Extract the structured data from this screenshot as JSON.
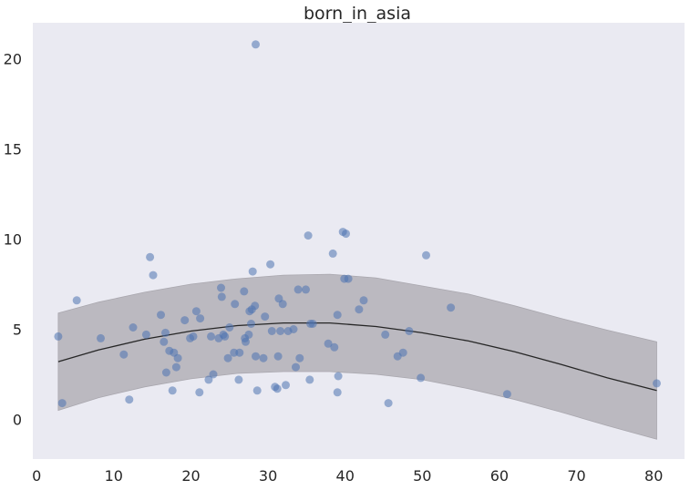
{
  "chart_data": {
    "type": "scatter",
    "title": "born_in_asia",
    "xlabel": "",
    "ylabel": "",
    "xlim": [
      -0.5,
      84
    ],
    "ylim": [
      -2.2,
      22
    ],
    "xticks": [
      0,
      10,
      20,
      30,
      40,
      50,
      60,
      70,
      80
    ],
    "yticks": [
      0,
      5,
      10,
      15,
      20
    ],
    "grid": false,
    "colors": {
      "background": "#EAEAF2",
      "points": "#4C72B0",
      "band": "#BBB9C0",
      "band_edge": "#A9A7AE",
      "fit_line": "#262626"
    },
    "points": [
      [
        2.8,
        4.6
      ],
      [
        3.3,
        0.9
      ],
      [
        5.2,
        6.6
      ],
      [
        8.3,
        4.5
      ],
      [
        11.3,
        3.6
      ],
      [
        12.0,
        1.1
      ],
      [
        12.5,
        5.1
      ],
      [
        14.2,
        4.7
      ],
      [
        14.7,
        9.0
      ],
      [
        15.1,
        8.0
      ],
      [
        16.1,
        5.8
      ],
      [
        16.5,
        4.3
      ],
      [
        16.7,
        4.8
      ],
      [
        16.8,
        2.6
      ],
      [
        17.2,
        3.8
      ],
      [
        17.6,
        1.6
      ],
      [
        17.8,
        3.7
      ],
      [
        18.1,
        2.9
      ],
      [
        18.3,
        3.4
      ],
      [
        19.2,
        5.5
      ],
      [
        19.9,
        4.5
      ],
      [
        20.3,
        4.6
      ],
      [
        20.7,
        6.0
      ],
      [
        21.1,
        1.5
      ],
      [
        21.2,
        5.6
      ],
      [
        22.3,
        2.2
      ],
      [
        22.6,
        4.6
      ],
      [
        22.9,
        2.5
      ],
      [
        23.6,
        4.5
      ],
      [
        23.9,
        7.3
      ],
      [
        24.0,
        6.8
      ],
      [
        24.2,
        4.7
      ],
      [
        24.4,
        4.6
      ],
      [
        24.8,
        3.4
      ],
      [
        25.0,
        5.1
      ],
      [
        25.6,
        3.7
      ],
      [
        25.7,
        6.4
      ],
      [
        26.2,
        2.2
      ],
      [
        26.3,
        3.7
      ],
      [
        26.9,
        7.1
      ],
      [
        27.0,
        4.5
      ],
      [
        27.1,
        4.3
      ],
      [
        27.5,
        4.7
      ],
      [
        27.6,
        6.0
      ],
      [
        27.8,
        5.3
      ],
      [
        27.9,
        6.1
      ],
      [
        28.0,
        8.2
      ],
      [
        28.3,
        6.3
      ],
      [
        28.4,
        3.5
      ],
      [
        28.6,
        1.6
      ],
      [
        28.4,
        20.8
      ],
      [
        29.4,
        3.4
      ],
      [
        29.6,
        5.7
      ],
      [
        30.3,
        8.6
      ],
      [
        30.5,
        4.9
      ],
      [
        30.9,
        1.8
      ],
      [
        31.2,
        1.7
      ],
      [
        31.3,
        3.5
      ],
      [
        31.4,
        6.7
      ],
      [
        31.6,
        4.9
      ],
      [
        31.9,
        6.4
      ],
      [
        32.3,
        1.9
      ],
      [
        32.6,
        4.9
      ],
      [
        33.3,
        5.0
      ],
      [
        33.6,
        2.9
      ],
      [
        33.9,
        7.2
      ],
      [
        34.1,
        3.4
      ],
      [
        34.9,
        7.2
      ],
      [
        35.2,
        10.2
      ],
      [
        35.4,
        2.2
      ],
      [
        35.5,
        5.3
      ],
      [
        35.8,
        5.3
      ],
      [
        37.8,
        4.2
      ],
      [
        38.4,
        9.2
      ],
      [
        38.6,
        4.0
      ],
      [
        39.0,
        5.8
      ],
      [
        39.1,
        2.4
      ],
      [
        39.0,
        1.5
      ],
      [
        39.7,
        10.4
      ],
      [
        39.9,
        7.8
      ],
      [
        40.1,
        10.3
      ],
      [
        40.4,
        7.8
      ],
      [
        41.8,
        6.1
      ],
      [
        42.4,
        6.6
      ],
      [
        45.2,
        4.7
      ],
      [
        45.6,
        0.9
      ],
      [
        46.8,
        3.5
      ],
      [
        47.5,
        3.7
      ],
      [
        48.3,
        4.9
      ],
      [
        49.8,
        2.3
      ],
      [
        50.5,
        9.1
      ],
      [
        53.7,
        6.2
      ],
      [
        61.0,
        1.4
      ],
      [
        80.4,
        2.0
      ]
    ],
    "fit": {
      "x": [
        2.8,
        8,
        14,
        20,
        26,
        32,
        38,
        44,
        50,
        56,
        62,
        68,
        74,
        80.4
      ],
      "y": [
        3.2,
        3.85,
        4.45,
        4.9,
        5.2,
        5.35,
        5.35,
        5.15,
        4.8,
        4.35,
        3.75,
        3.05,
        2.3,
        1.6
      ],
      "lower": [
        0.5,
        1.2,
        1.8,
        2.25,
        2.55,
        2.65,
        2.65,
        2.5,
        2.2,
        1.7,
        1.1,
        0.4,
        -0.35,
        -1.1
      ],
      "upper": [
        5.9,
        6.5,
        7.05,
        7.5,
        7.8,
        8.0,
        8.05,
        7.85,
        7.4,
        6.95,
        6.3,
        5.6,
        4.95,
        4.3
      ]
    }
  }
}
